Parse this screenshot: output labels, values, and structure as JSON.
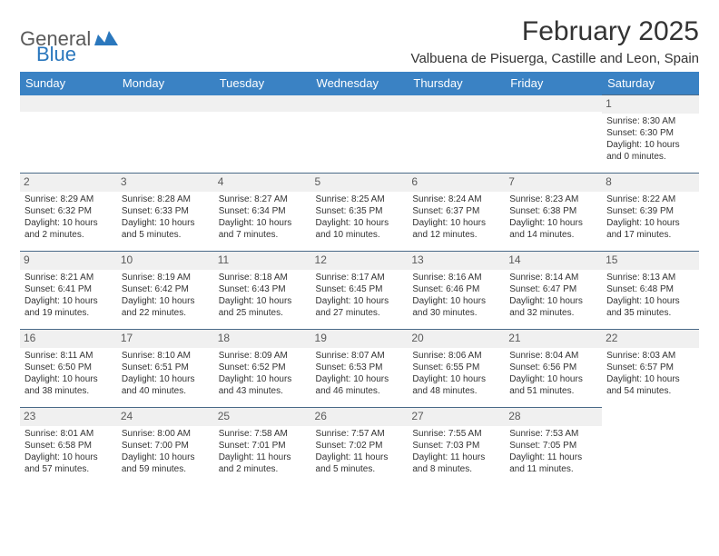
{
  "brand": {
    "part1": "General",
    "part2": "Blue"
  },
  "title": "February 2025",
  "location": "Valbuena de Pisuerga, Castille and Leon, Spain",
  "colors": {
    "header_bg": "#3a82c4",
    "header_text": "#ffffff",
    "daynum_bg": "#f0f0f0",
    "daynum_text": "#5a5a5a",
    "cell_border": "#4a6a88",
    "text": "#333333",
    "brand_gray": "#5a5a5a",
    "brand_blue": "#2a77bd",
    "page_bg": "#ffffff"
  },
  "typography": {
    "title_fontsize": 30,
    "location_fontsize": 15,
    "header_fontsize": 13,
    "daynum_fontsize": 12,
    "cell_fontsize": 10
  },
  "day_headers": [
    "Sunday",
    "Monday",
    "Tuesday",
    "Wednesday",
    "Thursday",
    "Friday",
    "Saturday"
  ],
  "layout": {
    "type": "table",
    "columns": 7,
    "rows": 5,
    "first_weekday_index": 6,
    "days_in_month": 28
  },
  "weeks": [
    [
      null,
      null,
      null,
      null,
      null,
      null,
      {
        "n": "1",
        "sunrise": "Sunrise: 8:30 AM",
        "sunset": "Sunset: 6:30 PM",
        "day1": "Daylight: 10 hours",
        "day2": "and 0 minutes."
      }
    ],
    [
      {
        "n": "2",
        "sunrise": "Sunrise: 8:29 AM",
        "sunset": "Sunset: 6:32 PM",
        "day1": "Daylight: 10 hours",
        "day2": "and 2 minutes."
      },
      {
        "n": "3",
        "sunrise": "Sunrise: 8:28 AM",
        "sunset": "Sunset: 6:33 PM",
        "day1": "Daylight: 10 hours",
        "day2": "and 5 minutes."
      },
      {
        "n": "4",
        "sunrise": "Sunrise: 8:27 AM",
        "sunset": "Sunset: 6:34 PM",
        "day1": "Daylight: 10 hours",
        "day2": "and 7 minutes."
      },
      {
        "n": "5",
        "sunrise": "Sunrise: 8:25 AM",
        "sunset": "Sunset: 6:35 PM",
        "day1": "Daylight: 10 hours",
        "day2": "and 10 minutes."
      },
      {
        "n": "6",
        "sunrise": "Sunrise: 8:24 AM",
        "sunset": "Sunset: 6:37 PM",
        "day1": "Daylight: 10 hours",
        "day2": "and 12 minutes."
      },
      {
        "n": "7",
        "sunrise": "Sunrise: 8:23 AM",
        "sunset": "Sunset: 6:38 PM",
        "day1": "Daylight: 10 hours",
        "day2": "and 14 minutes."
      },
      {
        "n": "8",
        "sunrise": "Sunrise: 8:22 AM",
        "sunset": "Sunset: 6:39 PM",
        "day1": "Daylight: 10 hours",
        "day2": "and 17 minutes."
      }
    ],
    [
      {
        "n": "9",
        "sunrise": "Sunrise: 8:21 AM",
        "sunset": "Sunset: 6:41 PM",
        "day1": "Daylight: 10 hours",
        "day2": "and 19 minutes."
      },
      {
        "n": "10",
        "sunrise": "Sunrise: 8:19 AM",
        "sunset": "Sunset: 6:42 PM",
        "day1": "Daylight: 10 hours",
        "day2": "and 22 minutes."
      },
      {
        "n": "11",
        "sunrise": "Sunrise: 8:18 AM",
        "sunset": "Sunset: 6:43 PM",
        "day1": "Daylight: 10 hours",
        "day2": "and 25 minutes."
      },
      {
        "n": "12",
        "sunrise": "Sunrise: 8:17 AM",
        "sunset": "Sunset: 6:45 PM",
        "day1": "Daylight: 10 hours",
        "day2": "and 27 minutes."
      },
      {
        "n": "13",
        "sunrise": "Sunrise: 8:16 AM",
        "sunset": "Sunset: 6:46 PM",
        "day1": "Daylight: 10 hours",
        "day2": "and 30 minutes."
      },
      {
        "n": "14",
        "sunrise": "Sunrise: 8:14 AM",
        "sunset": "Sunset: 6:47 PM",
        "day1": "Daylight: 10 hours",
        "day2": "and 32 minutes."
      },
      {
        "n": "15",
        "sunrise": "Sunrise: 8:13 AM",
        "sunset": "Sunset: 6:48 PM",
        "day1": "Daylight: 10 hours",
        "day2": "and 35 minutes."
      }
    ],
    [
      {
        "n": "16",
        "sunrise": "Sunrise: 8:11 AM",
        "sunset": "Sunset: 6:50 PM",
        "day1": "Daylight: 10 hours",
        "day2": "and 38 minutes."
      },
      {
        "n": "17",
        "sunrise": "Sunrise: 8:10 AM",
        "sunset": "Sunset: 6:51 PM",
        "day1": "Daylight: 10 hours",
        "day2": "and 40 minutes."
      },
      {
        "n": "18",
        "sunrise": "Sunrise: 8:09 AM",
        "sunset": "Sunset: 6:52 PM",
        "day1": "Daylight: 10 hours",
        "day2": "and 43 minutes."
      },
      {
        "n": "19",
        "sunrise": "Sunrise: 8:07 AM",
        "sunset": "Sunset: 6:53 PM",
        "day1": "Daylight: 10 hours",
        "day2": "and 46 minutes."
      },
      {
        "n": "20",
        "sunrise": "Sunrise: 8:06 AM",
        "sunset": "Sunset: 6:55 PM",
        "day1": "Daylight: 10 hours",
        "day2": "and 48 minutes."
      },
      {
        "n": "21",
        "sunrise": "Sunrise: 8:04 AM",
        "sunset": "Sunset: 6:56 PM",
        "day1": "Daylight: 10 hours",
        "day2": "and 51 minutes."
      },
      {
        "n": "22",
        "sunrise": "Sunrise: 8:03 AM",
        "sunset": "Sunset: 6:57 PM",
        "day1": "Daylight: 10 hours",
        "day2": "and 54 minutes."
      }
    ],
    [
      {
        "n": "23",
        "sunrise": "Sunrise: 8:01 AM",
        "sunset": "Sunset: 6:58 PM",
        "day1": "Daylight: 10 hours",
        "day2": "and 57 minutes."
      },
      {
        "n": "24",
        "sunrise": "Sunrise: 8:00 AM",
        "sunset": "Sunset: 7:00 PM",
        "day1": "Daylight: 10 hours",
        "day2": "and 59 minutes."
      },
      {
        "n": "25",
        "sunrise": "Sunrise: 7:58 AM",
        "sunset": "Sunset: 7:01 PM",
        "day1": "Daylight: 11 hours",
        "day2": "and 2 minutes."
      },
      {
        "n": "26",
        "sunrise": "Sunrise: 7:57 AM",
        "sunset": "Sunset: 7:02 PM",
        "day1": "Daylight: 11 hours",
        "day2": "and 5 minutes."
      },
      {
        "n": "27",
        "sunrise": "Sunrise: 7:55 AM",
        "sunset": "Sunset: 7:03 PM",
        "day1": "Daylight: 11 hours",
        "day2": "and 8 minutes."
      },
      {
        "n": "28",
        "sunrise": "Sunrise: 7:53 AM",
        "sunset": "Sunset: 7:05 PM",
        "day1": "Daylight: 11 hours",
        "day2": "and 11 minutes."
      },
      null
    ]
  ]
}
